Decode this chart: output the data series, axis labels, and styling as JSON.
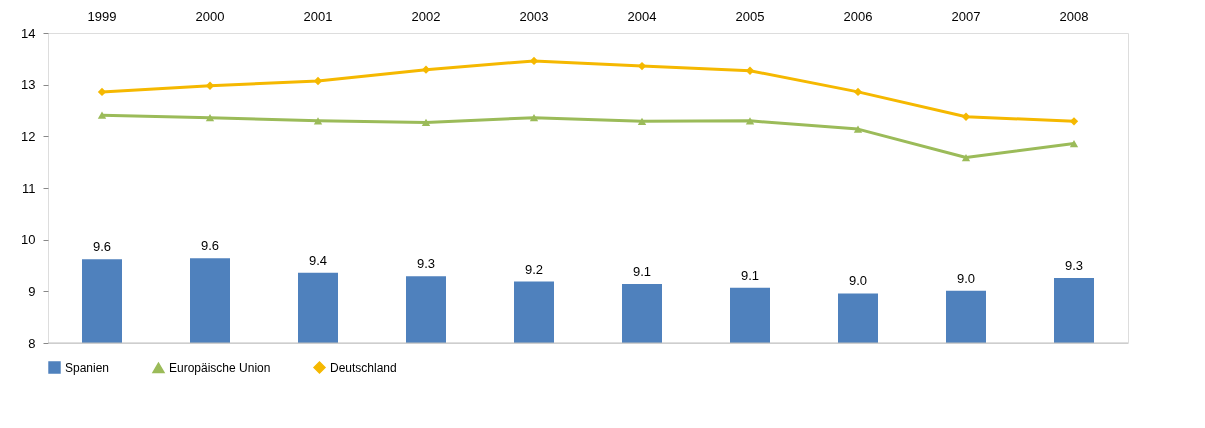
{
  "chart_data": {
    "type": "bar",
    "categories": [
      "1999",
      "2000",
      "2001",
      "2002",
      "2003",
      "2004",
      "2005",
      "2006",
      "2007",
      "2008"
    ],
    "series": [
      {
        "name": "Spanien",
        "color": "#4f81bd",
        "values": [
          9.62,
          9.64,
          9.36,
          9.29,
          9.19,
          9.14,
          9.07,
          8.96,
          9.01,
          9.26
        ],
        "value_labels": [
          "9.6",
          "9.6",
          "9.4",
          "9.3",
          "9.2",
          "9.1",
          "9.1",
          "9.0",
          "9.0",
          "9.3"
        ]
      },
      {
        "name": "Europäische Union",
        "type": "line",
        "marker": "triangle",
        "color": "#9bbb59",
        "values": [
          12.41,
          12.36,
          12.3,
          12.27,
          12.36,
          12.29,
          12.3,
          12.14,
          11.59,
          11.86
        ]
      },
      {
        "name": "Deutschland",
        "type": "line",
        "marker": "diamond",
        "color": "#f5b800",
        "values": [
          12.86,
          12.98,
          13.07,
          13.29,
          13.46,
          13.36,
          13.27,
          12.86,
          12.38,
          12.29
        ]
      }
    ],
    "ylim": [
      8,
      14
    ],
    "yticks": [
      8,
      9,
      10,
      11,
      12,
      13,
      14
    ],
    "grid": false,
    "legend": "bottom"
  }
}
